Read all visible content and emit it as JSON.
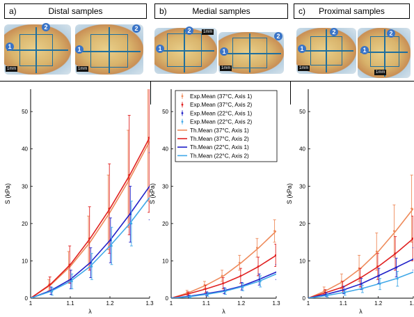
{
  "panels": [
    {
      "letter": "a)",
      "title": "Distal samples"
    },
    {
      "letter": "b)",
      "title": "Medial samples"
    },
    {
      "letter": "c)",
      "title": "Proximal samples"
    }
  ],
  "photos": {
    "badge_1": "1",
    "badge_2": "2",
    "scale_label": "1mm"
  },
  "colors": {
    "s37a1": "#ee8a5a",
    "s37a2": "#e02020",
    "s22a1": "#2020c8",
    "s22a2": "#40a8e8"
  },
  "legend": {
    "entries": [
      "Exp.Mean (37°C, Axis 1)",
      "Exp.Mean (37°C, Axis 2)",
      "Exp.Mean (22°C, Axis 1)",
      "Exp.Mean (22°C, Axis 2)",
      "Th.Mean (37°C, Axis 1)",
      "Th.Mean (37°C, Axis 2)",
      "Th.Mean (22°C, Axis 1)",
      "Th.Mean (22°C, Axis 2)"
    ]
  },
  "chart_data": [
    {
      "type": "line",
      "panel": "a)",
      "xlabel": "λ",
      "ylabel": "S (kPa)",
      "xlim": [
        1,
        1.3
      ],
      "ylim": [
        0,
        56
      ],
      "xticks": [
        1,
        1.1,
        1.2,
        1.3
      ],
      "xtick_labels": [
        "1",
        "1.1",
        "1.2",
        "1.3"
      ],
      "yticks": [
        0,
        10,
        20,
        30,
        40,
        50
      ],
      "x": [
        1.0,
        1.05,
        1.1,
        1.15,
        1.2,
        1.25,
        1.3
      ],
      "series": [
        {
          "id": "s37a1",
          "values": [
            0,
            3.5,
            8.5,
            15,
            23,
            32,
            42
          ],
          "errors": [
            0,
            1.5,
            4,
            7,
            10,
            13,
            16
          ]
        },
        {
          "id": "s37a2",
          "values": [
            0,
            3.7,
            9,
            16,
            24,
            33,
            43
          ],
          "errors": [
            0,
            2,
            5,
            8.5,
            12,
            16,
            20
          ]
        },
        {
          "id": "s22a1",
          "values": [
            0,
            2,
            5,
            9.5,
            15.5,
            22.5,
            30
          ],
          "errors": [
            0,
            1,
            2.5,
            4,
            6,
            7.5,
            9
          ]
        },
        {
          "id": "s22a2",
          "values": [
            0,
            1.8,
            4.5,
            8.5,
            14,
            20,
            27
          ],
          "errors": [
            0,
            1,
            2,
            3.5,
            5,
            6,
            7
          ]
        }
      ]
    },
    {
      "type": "line",
      "panel": "b)",
      "xlabel": "λ",
      "ylabel": "S (kPa)",
      "xlim": [
        1,
        1.3
      ],
      "ylim": [
        0,
        56
      ],
      "xticks": [
        1,
        1.1,
        1.2,
        1.3
      ],
      "xtick_labels": [
        "1",
        "1.1",
        "1.2",
        "1.3"
      ],
      "yticks": [
        0,
        10,
        20,
        30,
        40,
        50
      ],
      "x": [
        1.0,
        1.05,
        1.1,
        1.15,
        1.2,
        1.25,
        1.3
      ],
      "series": [
        {
          "id": "s37a1",
          "values": [
            0,
            1.5,
            3.5,
            6,
            9.5,
            13.5,
            18
          ],
          "errors": [
            0,
            0.6,
            1,
            1.5,
            2,
            2.5,
            3
          ]
        },
        {
          "id": "s37a2",
          "values": [
            0,
            1.2,
            2.5,
            4,
            6,
            8.5,
            11.5
          ],
          "errors": [
            0,
            0.5,
            1,
            1.5,
            2,
            2.5,
            3
          ]
        },
        {
          "id": "s22a1",
          "values": [
            0,
            0.5,
            1.2,
            2,
            3.2,
            5,
            7
          ],
          "errors": [
            0,
            0.3,
            0.5,
            0.8,
            1,
            1.5,
            2
          ]
        },
        {
          "id": "s22a2",
          "values": [
            0,
            0.4,
            1,
            1.8,
            3,
            4.5,
            6.5
          ],
          "errors": [
            0,
            0.3,
            0.5,
            0.8,
            1,
            1.5,
            2
          ]
        }
      ]
    },
    {
      "type": "line",
      "panel": "c)",
      "xlabel": "λ",
      "ylabel": "S (kPa)",
      "xlim": [
        1,
        1.3
      ],
      "ylim": [
        0,
        56
      ],
      "xticks": [
        1,
        1.1,
        1.2,
        1.3
      ],
      "xtick_labels": [
        "1",
        "1.1",
        "1.2",
        "1.3"
      ],
      "yticks": [
        0,
        10,
        20,
        30,
        40,
        50
      ],
      "x": [
        1.0,
        1.05,
        1.1,
        1.15,
        1.2,
        1.25,
        1.3
      ],
      "series": [
        {
          "id": "s37a1",
          "values": [
            0,
            2,
            4.5,
            8,
            12.5,
            18,
            24
          ],
          "errors": [
            0,
            1,
            2,
            3.5,
            5,
            7,
            9
          ]
        },
        {
          "id": "s37a2",
          "values": [
            0,
            1.5,
            3,
            5.5,
            8.5,
            12,
            16
          ],
          "errors": [
            0,
            0.8,
            1.5,
            2.5,
            3.5,
            4.5,
            6
          ]
        },
        {
          "id": "s22a1",
          "values": [
            0,
            1,
            2.2,
            3.8,
            6,
            8.2,
            10.5
          ],
          "errors": [
            0,
            0.5,
            1,
            1.5,
            2,
            2.5,
            3
          ]
        },
        {
          "id": "s22a2",
          "values": [
            0,
            0.7,
            1.5,
            2.5,
            3.8,
            5.2,
            7
          ],
          "errors": [
            0,
            0.4,
            0.7,
            1,
            1.5,
            2,
            2.5
          ]
        }
      ]
    }
  ]
}
